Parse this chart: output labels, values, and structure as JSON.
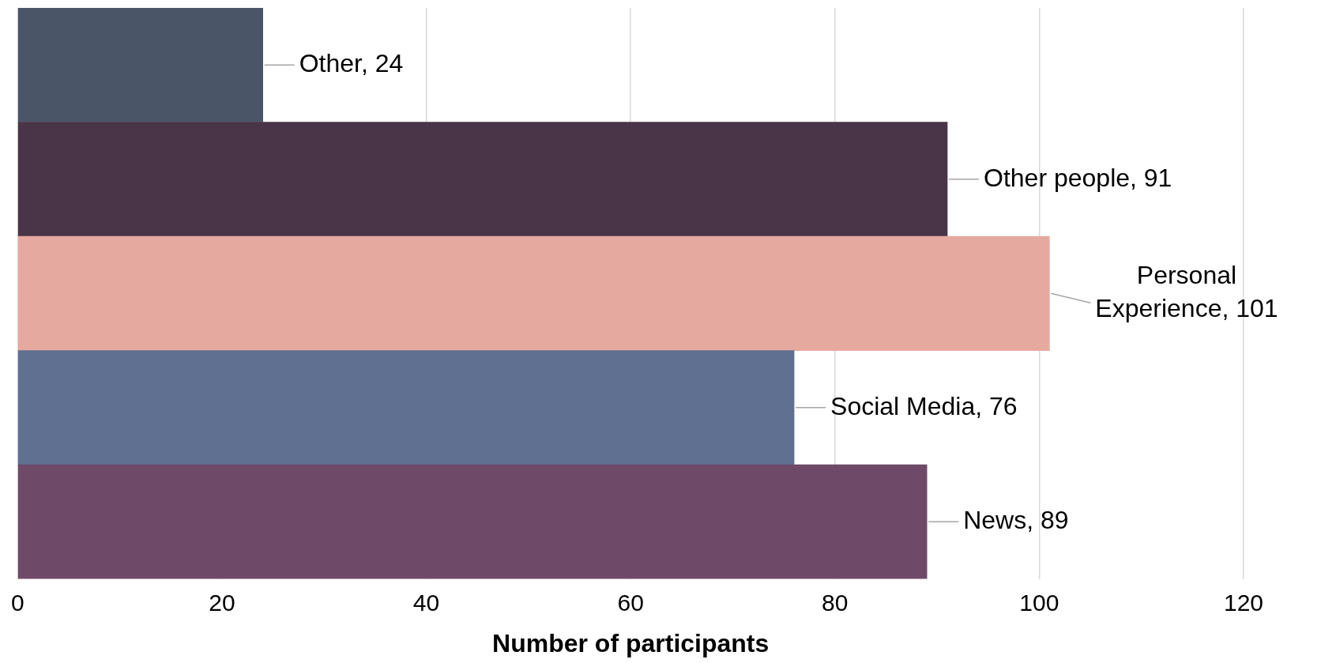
{
  "chart_data": {
    "type": "bar",
    "orientation": "horizontal",
    "xlabel": "Number of participants",
    "categories": [
      null,
      null,
      null,
      null,
      null
    ],
    "values": [
      24,
      91,
      101,
      76,
      89
    ],
    "colors": [
      "#4b5568",
      "#4a3448",
      "#e6a9a0",
      "#5f7091",
      "#6e4a68"
    ],
    "xlim": [
      0,
      120
    ],
    "xticks": [
      0,
      20,
      40,
      60,
      80,
      100,
      120
    ],
    "value_labels": [
      "Other, 24",
      "Other people, 91",
      "Personal Experience, 101",
      "Social Media, 76",
      "News, 89"
    ],
    "grid": "x",
    "legend": false,
    "tick_labels": "x"
  }
}
